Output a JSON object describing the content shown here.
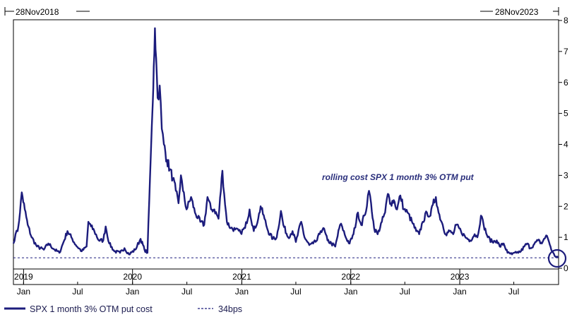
{
  "range": {
    "start": "28Nov2018",
    "end": "28Nov2023"
  },
  "annotation": "rolling cost SPX 1 month 3% OTM put",
  "colors": {
    "series": "#1c1c7c",
    "threshold": "#1c1c7c",
    "annotation": "#2a2f7c",
    "axis": "#000000"
  },
  "legend": [
    {
      "label": "SPX 1 month 3% OTM put cost",
      "style": "solid"
    },
    {
      "label": "34bps",
      "style": "dashed"
    }
  ],
  "chart_data": {
    "type": "line",
    "title": "",
    "xlabel": "",
    "ylabel": "",
    "xlim": [
      "2018-11-28",
      "2023-11-28"
    ],
    "ylim": [
      0,
      8
    ],
    "y_ticks": [
      0,
      1,
      2,
      3,
      4,
      5,
      6,
      7,
      8
    ],
    "y_axis_position": "right",
    "grid": false,
    "legend_position": "bottom-left",
    "month_ticks": [
      {
        "date": "2019-01-01",
        "label": "Jan"
      },
      {
        "date": "2019-07-01",
        "label": "Jul"
      },
      {
        "date": "2020-01-01",
        "label": "Jan"
      },
      {
        "date": "2020-07-01",
        "label": "Jul"
      },
      {
        "date": "2021-01-01",
        "label": "Jan"
      },
      {
        "date": "2021-07-01",
        "label": "Jul"
      },
      {
        "date": "2022-01-01",
        "label": "Jan"
      },
      {
        "date": "2022-07-01",
        "label": "Jul"
      },
      {
        "date": "2023-01-01",
        "label": "Jan"
      },
      {
        "date": "2023-07-01",
        "label": "Jul"
      }
    ],
    "year_labels": [
      {
        "date": "2019-01-01",
        "label": "2019"
      },
      {
        "date": "2020-01-01",
        "label": "2020"
      },
      {
        "date": "2021-01-01",
        "label": "2021"
      },
      {
        "date": "2022-01-01",
        "label": "2022"
      },
      {
        "date": "2023-01-01",
        "label": "2023"
      }
    ],
    "series": [
      {
        "name": "SPX 1 month 3% OTM put cost",
        "points": [
          [
            "2018-11-28",
            0.8
          ],
          [
            "2018-12-05",
            1.1
          ],
          [
            "2018-12-12",
            1.2
          ],
          [
            "2018-12-20",
            1.8
          ],
          [
            "2018-12-26",
            2.45
          ],
          [
            "2019-01-05",
            1.9
          ],
          [
            "2019-01-15",
            1.4
          ],
          [
            "2019-01-28",
            1.0
          ],
          [
            "2019-02-15",
            0.7
          ],
          [
            "2019-03-10",
            0.6
          ],
          [
            "2019-03-25",
            0.8
          ],
          [
            "2019-04-15",
            0.6
          ],
          [
            "2019-05-01",
            0.5
          ],
          [
            "2019-05-15",
            0.85
          ],
          [
            "2019-05-28",
            1.2
          ],
          [
            "2019-06-10",
            1.0
          ],
          [
            "2019-06-25",
            0.75
          ],
          [
            "2019-07-15",
            0.55
          ],
          [
            "2019-07-31",
            0.7
          ],
          [
            "2019-08-06",
            1.5
          ],
          [
            "2019-08-15",
            1.35
          ],
          [
            "2019-08-26",
            1.2
          ],
          [
            "2019-09-10",
            0.9
          ],
          [
            "2019-09-25",
            0.9
          ],
          [
            "2019-10-03",
            1.35
          ],
          [
            "2019-10-15",
            0.8
          ],
          [
            "2019-11-01",
            0.55
          ],
          [
            "2019-11-20",
            0.5
          ],
          [
            "2019-12-05",
            0.65
          ],
          [
            "2019-12-20",
            0.45
          ],
          [
            "2020-01-10",
            0.6
          ],
          [
            "2020-01-28",
            0.95
          ],
          [
            "2020-02-10",
            0.6
          ],
          [
            "2020-02-20",
            0.5
          ],
          [
            "2020-02-26",
            2.2
          ],
          [
            "2020-03-02",
            3.6
          ],
          [
            "2020-03-09",
            5.4
          ],
          [
            "2020-03-12",
            6.5
          ],
          [
            "2020-03-16",
            7.75
          ],
          [
            "2020-03-20",
            6.8
          ],
          [
            "2020-03-25",
            5.5
          ],
          [
            "2020-04-01",
            5.9
          ],
          [
            "2020-04-08",
            4.5
          ],
          [
            "2020-04-15",
            4.0
          ],
          [
            "2020-04-25",
            3.5
          ],
          [
            "2020-05-05",
            3.2
          ],
          [
            "2020-05-15",
            2.9
          ],
          [
            "2020-05-25",
            2.5
          ],
          [
            "2020-06-03",
            2.1
          ],
          [
            "2020-06-11",
            3.0
          ],
          [
            "2020-06-18",
            2.5
          ],
          [
            "2020-06-30",
            1.9
          ],
          [
            "2020-07-15",
            2.3
          ],
          [
            "2020-07-28",
            1.8
          ],
          [
            "2020-08-15",
            1.5
          ],
          [
            "2020-08-28",
            1.4
          ],
          [
            "2020-09-08",
            2.3
          ],
          [
            "2020-09-20",
            1.9
          ],
          [
            "2020-10-01",
            1.9
          ],
          [
            "2020-10-15",
            1.6
          ],
          [
            "2020-10-28",
            3.15
          ],
          [
            "2020-11-03",
            2.4
          ],
          [
            "2020-11-12",
            1.5
          ],
          [
            "2020-11-25",
            1.3
          ],
          [
            "2020-12-10",
            1.25
          ],
          [
            "2020-12-28",
            1.15
          ],
          [
            "2021-01-12",
            1.3
          ],
          [
            "2021-01-27",
            1.9
          ],
          [
            "2021-02-10",
            1.2
          ],
          [
            "2021-02-25",
            1.6
          ],
          [
            "2021-03-05",
            2.0
          ],
          [
            "2021-03-18",
            1.6
          ],
          [
            "2021-03-30",
            1.2
          ],
          [
            "2021-04-15",
            0.95
          ],
          [
            "2021-04-28",
            1.0
          ],
          [
            "2021-05-12",
            1.85
          ],
          [
            "2021-05-20",
            1.4
          ],
          [
            "2021-06-05",
            1.0
          ],
          [
            "2021-06-20",
            1.2
          ],
          [
            "2021-07-01",
            0.85
          ],
          [
            "2021-07-19",
            1.5
          ],
          [
            "2021-07-30",
            1.0
          ],
          [
            "2021-08-15",
            0.75
          ],
          [
            "2021-08-28",
            0.8
          ],
          [
            "2021-09-10",
            0.9
          ],
          [
            "2021-09-22",
            1.2
          ],
          [
            "2021-10-01",
            1.3
          ],
          [
            "2021-10-15",
            0.9
          ],
          [
            "2021-10-28",
            0.8
          ],
          [
            "2021-11-10",
            0.7
          ],
          [
            "2021-11-26",
            1.4
          ],
          [
            "2021-12-03",
            1.35
          ],
          [
            "2021-12-15",
            1.0
          ],
          [
            "2021-12-28",
            0.8
          ],
          [
            "2022-01-10",
            1.1
          ],
          [
            "2022-01-25",
            1.8
          ],
          [
            "2022-02-05",
            1.4
          ],
          [
            "2022-02-15",
            1.7
          ],
          [
            "2022-02-24",
            2.0
          ],
          [
            "2022-03-03",
            2.5
          ],
          [
            "2022-03-10",
            2.1
          ],
          [
            "2022-03-20",
            1.3
          ],
          [
            "2022-04-01",
            1.1
          ],
          [
            "2022-04-15",
            1.5
          ],
          [
            "2022-04-26",
            1.8
          ],
          [
            "2022-05-05",
            2.4
          ],
          [
            "2022-05-15",
            2.1
          ],
          [
            "2022-05-25",
            2.2
          ],
          [
            "2022-06-05",
            1.9
          ],
          [
            "2022-06-16",
            2.35
          ],
          [
            "2022-06-28",
            1.9
          ],
          [
            "2022-07-10",
            1.8
          ],
          [
            "2022-07-25",
            1.5
          ],
          [
            "2022-08-08",
            1.2
          ],
          [
            "2022-08-18",
            1.1
          ],
          [
            "2022-08-30",
            1.5
          ],
          [
            "2022-09-13",
            1.8
          ],
          [
            "2022-09-25",
            1.7
          ],
          [
            "2022-10-03",
            2.05
          ],
          [
            "2022-10-13",
            2.3
          ],
          [
            "2022-10-22",
            1.8
          ],
          [
            "2022-11-05",
            1.4
          ],
          [
            "2022-11-15",
            1.1
          ],
          [
            "2022-11-28",
            1.2
          ],
          [
            "2022-12-10",
            1.1
          ],
          [
            "2022-12-20",
            1.4
          ],
          [
            "2023-01-05",
            1.2
          ],
          [
            "2023-01-20",
            1.0
          ],
          [
            "2023-02-05",
            0.9
          ],
          [
            "2023-02-20",
            1.1
          ],
          [
            "2023-03-01",
            1.0
          ],
          [
            "2023-03-13",
            1.7
          ],
          [
            "2023-03-22",
            1.4
          ],
          [
            "2023-04-05",
            1.0
          ],
          [
            "2023-04-20",
            0.85
          ],
          [
            "2023-05-05",
            0.9
          ],
          [
            "2023-05-15",
            0.7
          ],
          [
            "2023-05-28",
            0.8
          ],
          [
            "2023-06-10",
            0.5
          ],
          [
            "2023-06-25",
            0.45
          ],
          [
            "2023-07-10",
            0.5
          ],
          [
            "2023-07-25",
            0.55
          ],
          [
            "2023-08-05",
            0.7
          ],
          [
            "2023-08-15",
            0.8
          ],
          [
            "2023-08-25",
            0.65
          ],
          [
            "2023-09-05",
            0.75
          ],
          [
            "2023-09-20",
            0.9
          ],
          [
            "2023-10-03",
            0.8
          ],
          [
            "2023-10-10",
            0.95
          ],
          [
            "2023-10-20",
            1.05
          ],
          [
            "2023-10-27",
            0.85
          ],
          [
            "2023-11-06",
            0.55
          ],
          [
            "2023-11-15",
            0.4
          ],
          [
            "2023-11-28",
            0.35
          ]
        ]
      },
      {
        "name": "34bps",
        "constant": 0.34,
        "style": "dashed"
      }
    ]
  }
}
